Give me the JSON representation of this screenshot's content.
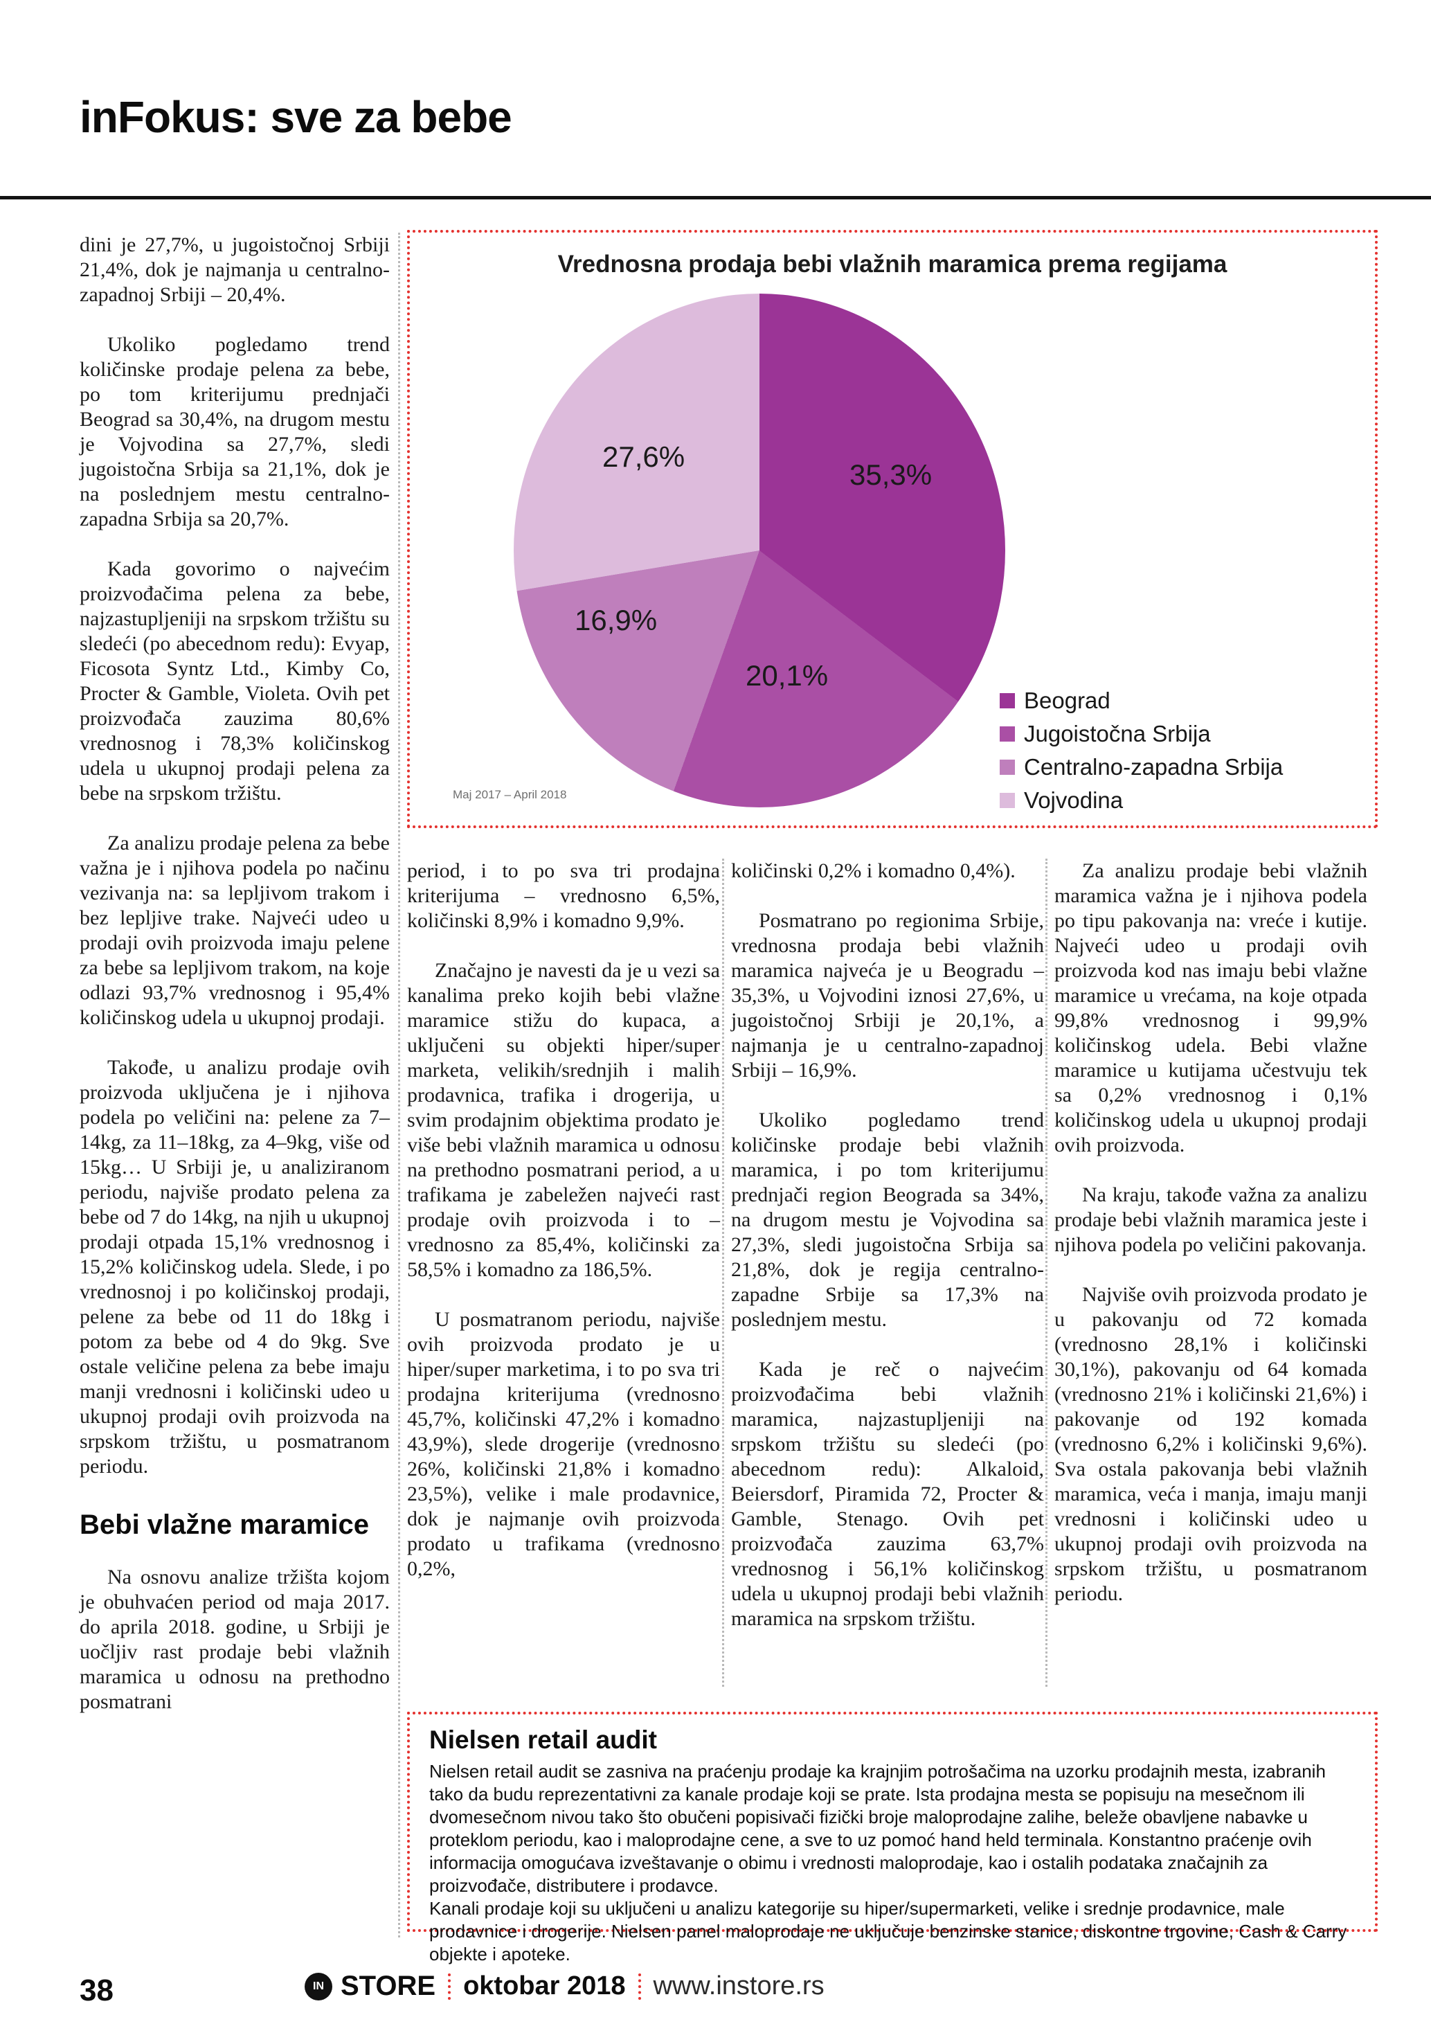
{
  "header": {
    "title": "inFokus: sve za bebe"
  },
  "chart_data": {
    "type": "pie",
    "title": "Vrednosna prodaja bebi vlažnih maramica prema regijama",
    "categories": [
      "Beograd",
      "Jugoistočna Srbija",
      "Centralno-zapadna Srbija",
      "Vojvodina"
    ],
    "values": [
      35.3,
      20.1,
      16.9,
      27.6
    ],
    "display_labels": [
      "35,3%",
      "20,1%",
      "16,9%",
      "27,6%"
    ],
    "colors": [
      "#9b3496",
      "#aa4fa5",
      "#bf7fbc",
      "#ddbbdc"
    ],
    "start_angle_deg": 0,
    "direction": "clockwise",
    "legend_position": "bottom-right",
    "caption": "Maj 2017 – April 2018"
  },
  "col1": {
    "paras": [
      "dini je 27,7%, u jugoistočnoj Srbiji 21,4%, dok je najmanja u centralno-zapadnoj Srbiji – 20,4%.",
      "Ukoliko pogledamo trend količinske prodaje pelena za bebe, po tom kriterijumu prednjači Beograd sa 30,4%, na drugom mestu je Vojvodina sa 27,7%, sledi jugoistočna Srbija sa 21,1%, dok je na poslednjem mestu centralno-zapadna Srbija sa 20,7%.",
      "Kada govorimo o najvećim proizvođačima pelena za bebe, najzastupljeniji na srpskom tržištu su sledeći (po abecednom redu): Evyap, Ficosota Syntz Ltd., Kimby Co, Procter & Gamble, Violeta. Ovih pet proizvođača zauzima 80,6% vrednosnog i 78,3% količinskog udela u ukupnoj prodaji pelena za bebe na srpskom tržištu.",
      "Za analizu prodaje pelena za bebe važna je i njihova podela po načinu vezivanja na: sa lepljivom trakom i bez lepljive trake. Najveći udeo u prodaji ovih proizvoda imaju pelene za bebe sa lepljivom trakom, na koje odlazi 93,7% vrednosnog i 95,4% količinskog udela u ukupnoj prodaji.",
      "Takođe, u analizu prodaje ovih proizvoda uključena je i njihova podela po veličini na: pelene za 7–14kg, za 11–18kg, za 4–9kg, više od 15kg… U Srbiji je, u analiziranom periodu, najviše prodato pelena za bebe od 7 do 14kg, na njih u ukupnoj prodaji otpada 15,1% vrednosnog i 15,2% količinskog udela. Slede, i po vrednosnoj i po količinskoj prodaji, pelene za bebe od 11 do 18kg i potom za bebe od 4 do 9kg. Sve ostale veličine pelena za bebe imaju manji vrednosni i količinski udeo u ukupnoj prodaji ovih proizvoda na srpskom tržištu, u posmatranom periodu."
    ],
    "subheading": "Bebi vlažne maramice",
    "last_para": "Na osnovu analize tržišta kojom je obuhvaćen period od maja 2017. do aprila 2018. godine, u Srbiji je uočljiv rast prodaje bebi vlažnih maramica u odnosu na prethodno posmatrani"
  },
  "col2": {
    "paras": [
      "period, i to po sva tri prodajna kriterijuma – vrednosno 6,5%, količinski 8,9% i komadno 9,9%.",
      "Značajno je navesti da je u vezi sa kanalima preko kojih bebi vlažne maramice stižu do kupaca, a uključeni su objekti hiper/super marketa, velikih/srednjih i malih prodavnica, trafika i drogerija, u svim prodajnim objektima prodato je više bebi vlažnih maramica u odnosu na prethodno posmatrani period, a u trafikama je zabeležen najveći rast prodaje ovih proizvoda i to – vrednosno za 85,4%, količinski za 58,5% i komadno za 186,5%.",
      "U posmatranom periodu, najviše ovih proizvoda prodato je u hiper/super marketima, i to po sva tri prodajna kriterijuma (vrednosno 45,7%, količinski 47,2% i komadno 43,9%), slede drogerije (vrednosno 26%, količinski 21,8% i komadno 23,5%), velike i male prodavnice, dok je najmanje ovih proizvoda prodato u trafikama (vrednosno 0,2%,"
    ]
  },
  "col3": {
    "paras": [
      "količinski 0,2% i komadno 0,4%).",
      "Posmatrano po regionima Srbije, vrednosna prodaja bebi vlažnih maramica najveća je u Beogradu – 35,3%, u Vojvodini iznosi 27,6%, u jugoistočnoj Srbiji je 20,1%, a najmanja je u centralno-zapadnoj Srbiji – 16,9%.",
      "Ukoliko pogledamo trend količinske prodaje bebi vlažnih maramica, i po tom kriterijumu prednjači region Beograda sa 34%, na drugom mestu je Vojvodina sa 27,3%, sledi jugoistočna Srbija sa 21,8%, dok je regija centralno-zapadne Srbije sa 17,3% na poslednjem mestu.",
      "Kada je reč o najvećim proizvođačima bebi vlažnih maramica, najzastupljeniji na srpskom tržištu su sledeći (po abecednom redu): Alkaloid, Beiersdorf, Piramida 72, Procter & Gamble, Stenago. Ovih pet proizvođača zauzima 63,7% vrednosnog i 56,1% količinskog udela u ukupnoj prodaji bebi vlažnih maramica na srpskom tržištu."
    ]
  },
  "col4": {
    "paras": [
      "Za analizu prodaje bebi vlažnih maramica važna je i njihova podela po tipu pakovanja na: vreće i kutije. Najveći udeo u prodaji ovih proizvoda kod nas imaju bebi vlažne maramice u vrećama, na koje otpada 99,8% vrednosnog i 99,9% količinskog udela. Bebi vlažne maramice u kutijama učestvuju tek sa 0,2% vrednosnog i 0,1% količinskog udela u ukupnoj prodaji ovih proizvoda.",
      "Na kraju, takođe važna za analizu prodaje bebi vlažnih maramica jeste i njihova podela po veličini pakovanja.",
      "Najviše ovih proizvoda prodato je u pakovanju od 72 komada (vrednosno 28,1% i količinski 30,1%), pakovanju od 64 komada (vrednosno 21% i količinski 21,6%) i pakovanje od 192 komada (vrednosno 6,2% i količinski 9,6%). Sva ostala pakovanja bebi vlažnih maramica, veća i manja, imaju manji vrednosni i količinski udeo u ukupnoj prodaji ovih proizvoda na srpskom tržištu, u posmatranom periodu."
    ]
  },
  "nielsen": {
    "heading": "Nielsen retail audit",
    "paras": [
      "Nielsen retail audit se zasniva na praćenju prodaje ka krajnjim potrošačima na uzorku prodajnih mesta, izabranih tako da budu reprezentativni za kanale prodaje koji se prate. Ista prodajna mesta se popisuju na mesečnom ili dvomesečnom nivou tako što obučeni popisivači fizički broje maloprodajne zalihe, beleže obavljene nabavke u proteklom periodu, kao i maloprodajne cene, a sve to uz pomoć hand held terminala. Konstantno praćenje ovih informacija omogućava izveštavanje o obimu i vrednosti maloprodaje, kao i ostalih podataka značajnih za proizvođače, distributere i prodavce.",
      "Kanali prodaje koji su uključeni u analizu kategorije su hiper/supermarketi, velike i srednje prodavnice, male prodavnice i drogerije. Nielsen panel maloprodaje ne uključuje benzinske stanice, diskontne trgovine, Cash & Carry objekte i apoteke."
    ]
  },
  "footer": {
    "page_number": "38",
    "logo": "IN",
    "brand": "STORE",
    "issue": "oktobar 2018",
    "website": "www.instore.rs"
  }
}
